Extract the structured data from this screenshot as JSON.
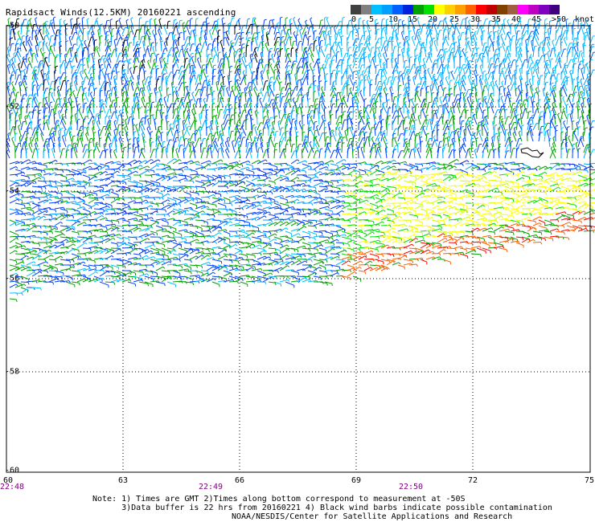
{
  "title": "Rapidsact Winds(12.5KM) 20160221 ascending",
  "colorbar": {
    "colors": [
      "#404040",
      "#808080",
      "#00c0ff",
      "#00a0ff",
      "#0060ff",
      "#0020e0",
      "#00a000",
      "#00e000",
      "#ffff00",
      "#ffd000",
      "#ffa000",
      "#ff6000",
      "#ff0000",
      "#c00000",
      "#804000",
      "#a06040",
      "#ff00ff",
      "#c000c0",
      "#8000c0",
      "#400080"
    ],
    "labels": [
      "0",
      "5",
      "10",
      "15",
      "20",
      "25",
      "30",
      "35",
      "40",
      "45",
      ">50"
    ],
    "units": "knots"
  },
  "map": {
    "lon_ticks": [
      "60",
      "63",
      "66",
      "69",
      "72",
      "75"
    ],
    "lat_ticks": [
      "-50",
      "-52",
      "-54",
      "-56",
      "-58",
      "-60"
    ],
    "lon_range": [
      60,
      75
    ],
    "lat_range": [
      -60,
      -50
    ],
    "times": [
      "22:48",
      "22:49",
      "22:50"
    ]
  },
  "notes": [
    "Note: 1) Times are GMT 2)Times along bottom correspond to measurement at -50S",
    "      3)Data buffer is 22 hrs from 20160221 4) Black wind barbs indicate possible contamination",
    "NOAA/NESDIS/Center for Satellite Applications and Research"
  ]
}
